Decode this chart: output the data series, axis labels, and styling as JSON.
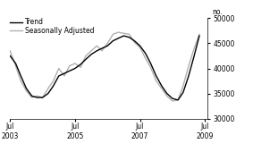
{
  "title": "",
  "ylabel": "no.",
  "ylim": [
    30000,
    50000
  ],
  "yticks": [
    30000,
    35000,
    40000,
    45000,
    50000
  ],
  "xlim_start": 2003.5,
  "xlim_end": 2009.58,
  "xtick_positions": [
    2003.5,
    2005.5,
    2007.5,
    2009.5
  ],
  "xtick_labels": [
    "Jul\n2003",
    "Jul\n2005",
    "Jul\n2007",
    "Jul\n2009"
  ],
  "legend_entries": [
    "Trend",
    "Seasonally Adjusted"
  ],
  "trend_color": "#000000",
  "sa_color": "#b0b0b0",
  "background_color": "#ffffff",
  "trend_x": [
    2003.5,
    2003.67,
    2003.83,
    2004.0,
    2004.17,
    2004.33,
    2004.5,
    2004.67,
    2004.83,
    2005.0,
    2005.17,
    2005.33,
    2005.5,
    2005.67,
    2005.83,
    2006.0,
    2006.17,
    2006.33,
    2006.5,
    2006.67,
    2006.83,
    2007.0,
    2007.17,
    2007.33,
    2007.5,
    2007.67,
    2007.83,
    2008.0,
    2008.17,
    2008.33,
    2008.5,
    2008.67,
    2008.83,
    2009.0,
    2009.17,
    2009.33
  ],
  "trend_y": [
    42500,
    41000,
    38500,
    36000,
    34500,
    34200,
    34200,
    35000,
    36500,
    38500,
    39000,
    39500,
    40000,
    40800,
    41800,
    42800,
    43500,
    44000,
    44500,
    45500,
    46000,
    46500,
    46200,
    45500,
    44500,
    43000,
    41000,
    38500,
    36500,
    35000,
    34000,
    33700,
    35200,
    38500,
    42500,
    46500
  ],
  "sa_x": [
    2003.5,
    2003.67,
    2003.83,
    2004.0,
    2004.17,
    2004.33,
    2004.5,
    2004.67,
    2004.83,
    2005.0,
    2005.17,
    2005.33,
    2005.5,
    2005.67,
    2005.83,
    2006.0,
    2006.17,
    2006.33,
    2006.5,
    2006.67,
    2006.83,
    2007.0,
    2007.17,
    2007.33,
    2007.5,
    2007.67,
    2007.83,
    2008.0,
    2008.17,
    2008.33,
    2008.5,
    2008.67,
    2008.83,
    2009.0,
    2009.17,
    2009.33
  ],
  "sa_y": [
    43500,
    40500,
    37500,
    35500,
    34200,
    34500,
    34200,
    36000,
    37500,
    40000,
    38500,
    40500,
    41000,
    40200,
    42500,
    43500,
    44500,
    43500,
    45000,
    46800,
    47200,
    47000,
    46800,
    45200,
    44200,
    42000,
    40200,
    37500,
    36000,
    34500,
    33500,
    33700,
    36500,
    40500,
    44000,
    46800
  ],
  "line_width": 1.0
}
